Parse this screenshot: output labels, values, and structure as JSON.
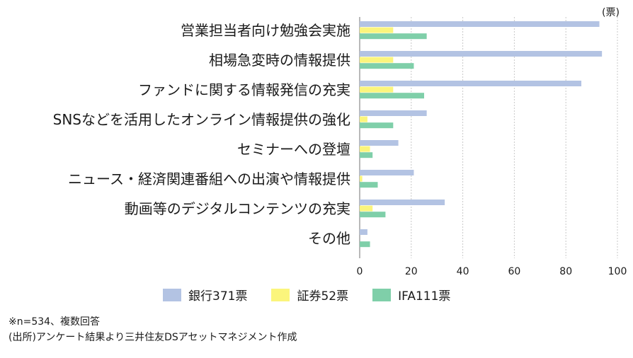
{
  "chart_data": {
    "type": "bar",
    "orientation": "horizontal",
    "unit_label": "(票)",
    "categories": [
      "営業担当者向け勉強会実施",
      "相場急変時の情報提供",
      "ファンドに関する情報発信の充実",
      "SNSなどを活用したオンライン情報提供の強化",
      "セミナーへの登壇",
      "ニュース・経済関連番組への出演や情報提供",
      "動画等のデジタルコンテンツの充実",
      "その他"
    ],
    "series": [
      {
        "name": "銀行371票",
        "color": "#b3c3e3",
        "values": [
          93,
          94,
          86,
          26,
          15,
          21,
          33,
          3
        ]
      },
      {
        "name": "証券52票",
        "color": "#fbf57c",
        "values": [
          13,
          13,
          13,
          3,
          4,
          1,
          5,
          0
        ]
      },
      {
        "name": "IFA111票",
        "color": "#7fcfa9",
        "values": [
          26,
          21,
          25,
          13,
          5,
          7,
          10,
          4
        ]
      }
    ],
    "xlim": [
      0,
      100
    ],
    "xticks": [
      0,
      20,
      40,
      60,
      80,
      100
    ],
    "grid": true,
    "legend_position": "bottom"
  },
  "notes": {
    "line1": "※n=534、複数回答",
    "line2": "(出所)アンケート結果より三井住友DSアセットマネジメント作成"
  }
}
